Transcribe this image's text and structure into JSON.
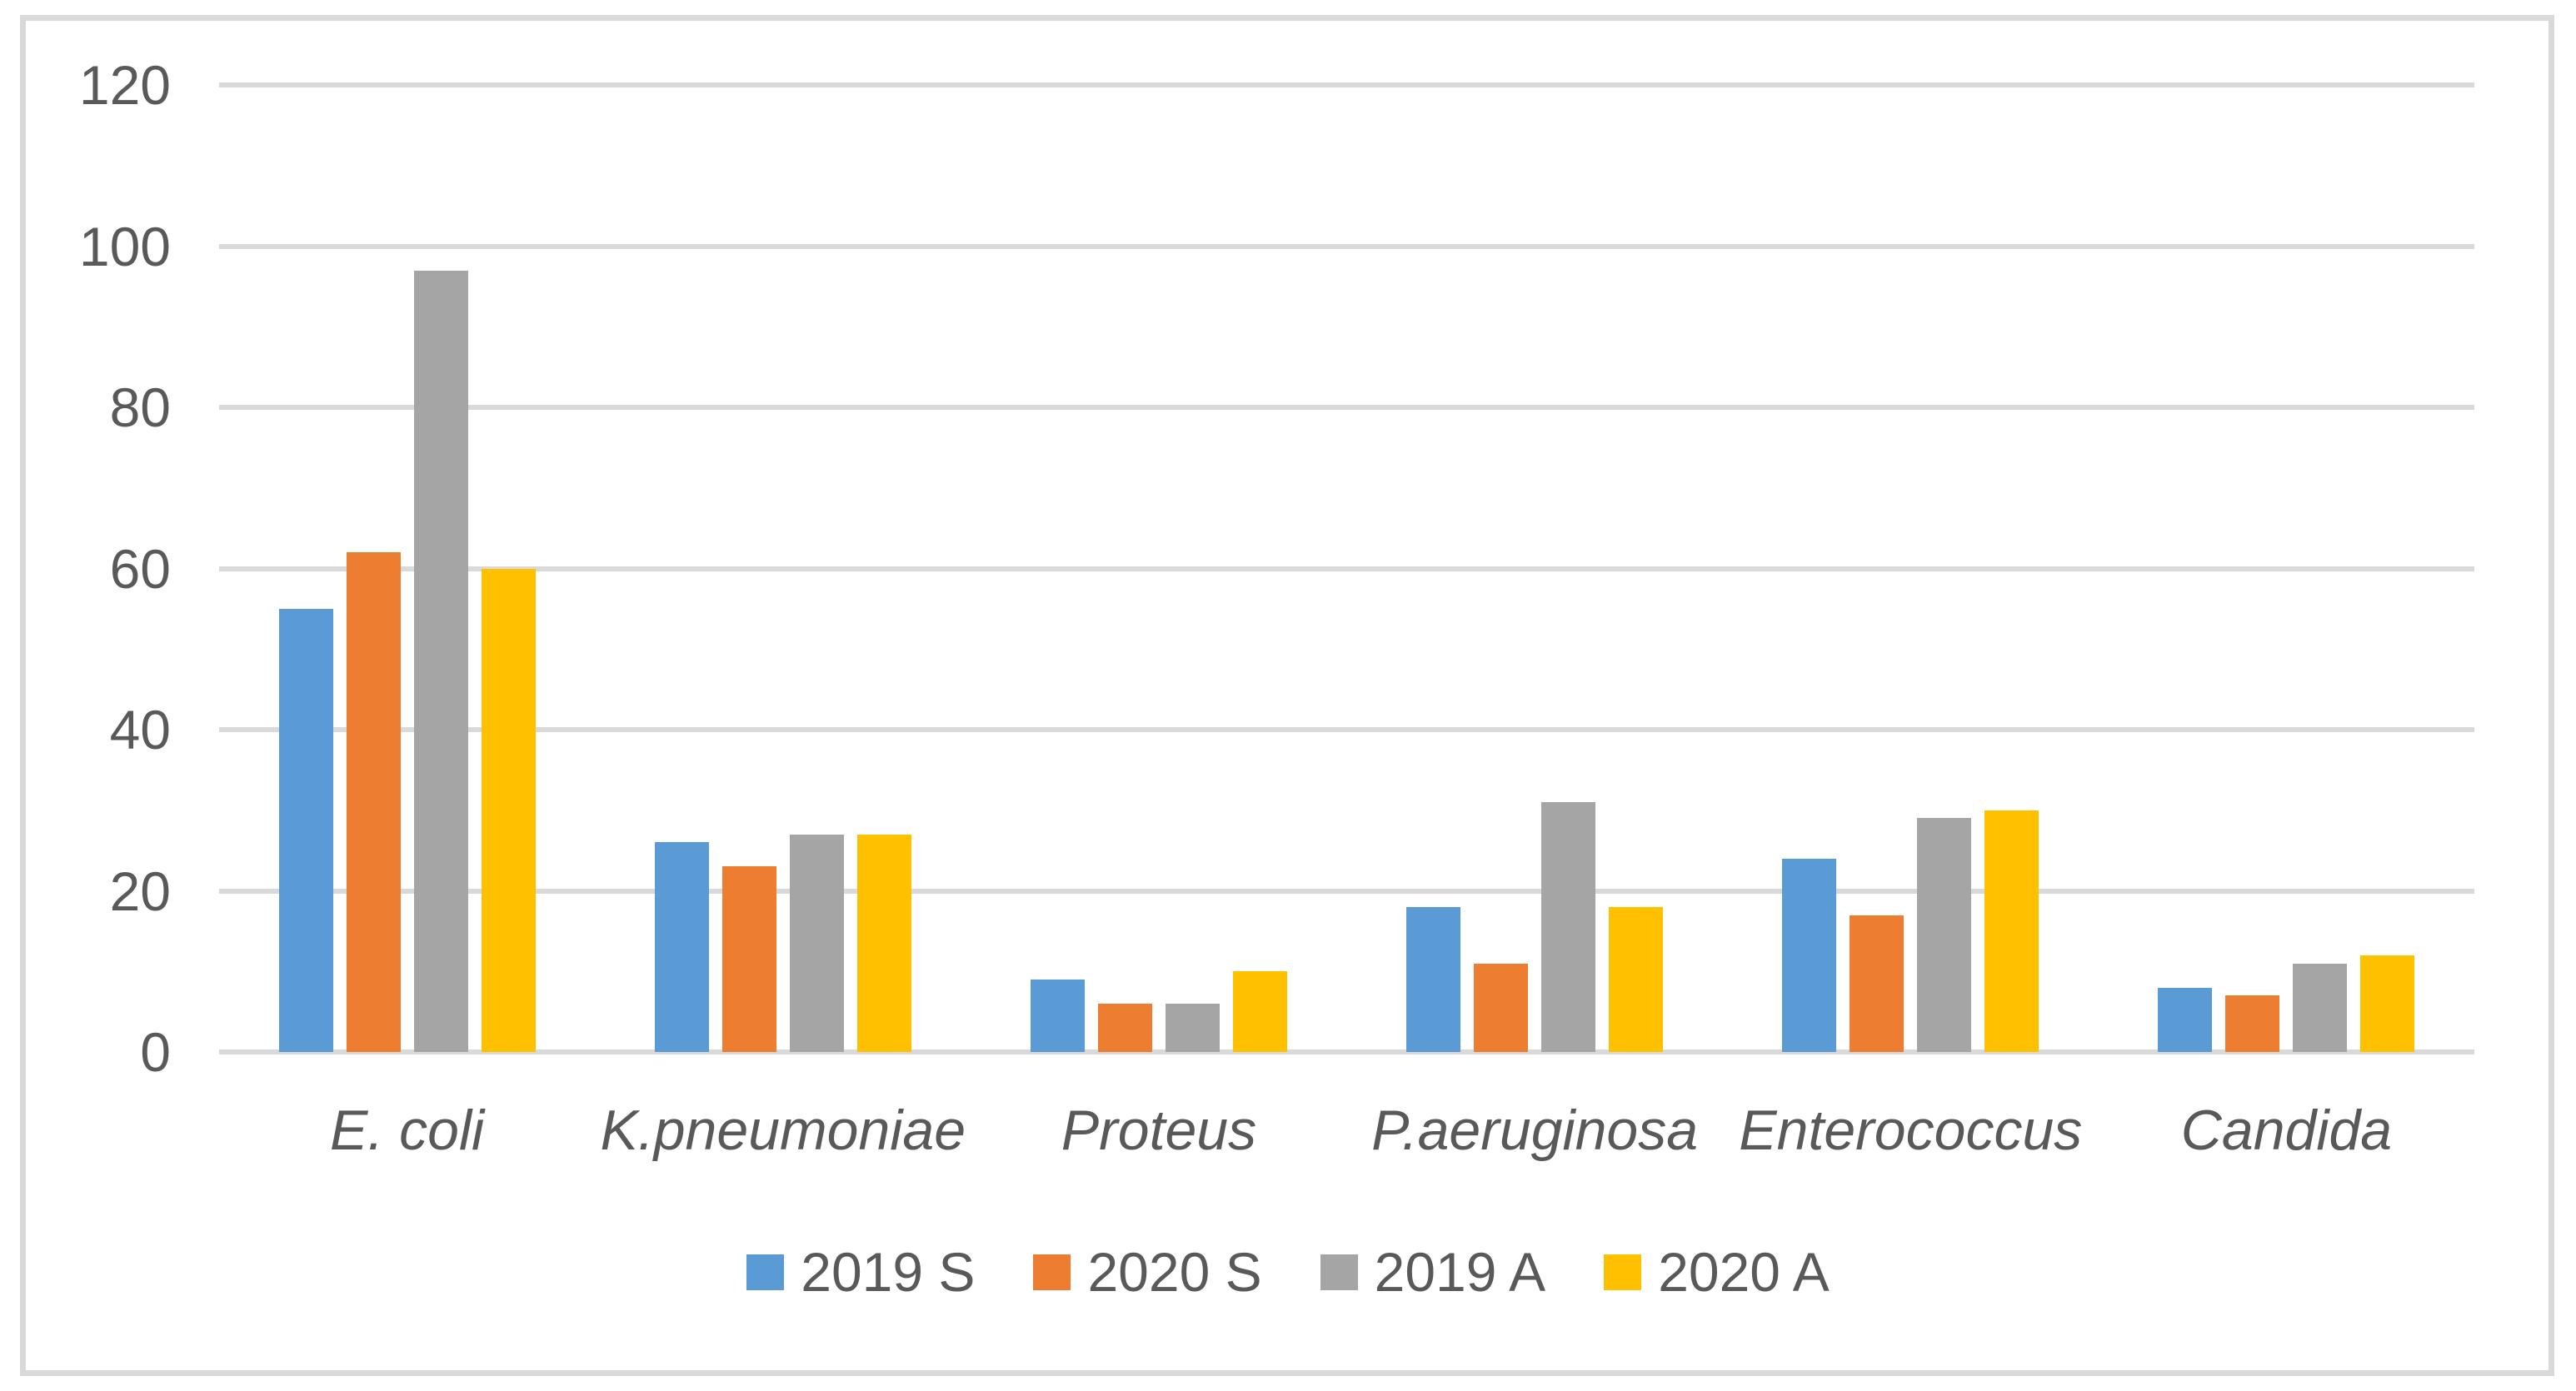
{
  "chart_data": {
    "type": "bar",
    "title": "",
    "xlabel": "",
    "ylabel": "",
    "categories": [
      "E. coli",
      "K.pneumoniae",
      "Proteus",
      "P.aeruginosa",
      "Enterococcus",
      "Candida"
    ],
    "series": [
      {
        "name": "2019 S",
        "color": "#5B9BD5",
        "values": [
          55,
          26,
          9,
          18,
          24,
          8
        ]
      },
      {
        "name": "2020 S",
        "color": "#ED7D31",
        "values": [
          62,
          23,
          6,
          11,
          17,
          7
        ]
      },
      {
        "name": "2019 A",
        "color": "#A5A5A5",
        "values": [
          97,
          27,
          6,
          31,
          29,
          11
        ]
      },
      {
        "name": "2020 A",
        "color": "#FFC000",
        "values": [
          60,
          27,
          10,
          18,
          30,
          12
        ]
      }
    ],
    "ylim": [
      0,
      120
    ],
    "yticks": [
      0,
      20,
      40,
      60,
      80,
      100,
      120
    ],
    "grid": "horizontal",
    "legend_position": "bottom",
    "category_label_style": "italic"
  },
  "style_colors": {
    "text": "#595959",
    "gridline": "#D9D9D9",
    "frame_border": "#D9D9D9",
    "background": "#FFFFFF"
  }
}
